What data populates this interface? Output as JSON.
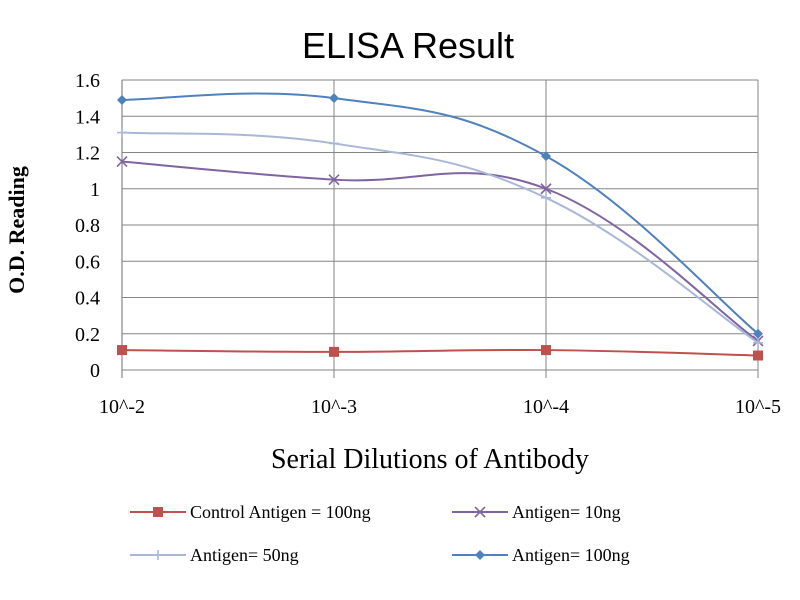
{
  "chart_data": {
    "type": "line",
    "title": "ELISA Result",
    "xlabel": "Serial Dilutions  of Antibody",
    "ylabel": "O.D. Reading",
    "categories": [
      "10^-2",
      "10^-3",
      "10^-4",
      "10^-5"
    ],
    "y_ticks": [
      "0",
      "0.2",
      "0.4",
      "0.6",
      "0.8",
      "1",
      "1.2",
      "1.4",
      "1.6"
    ],
    "ylim": [
      0,
      1.6
    ],
    "grid": true,
    "legend_position": "bottom",
    "series": [
      {
        "name": "Control Antigen = 100ng",
        "values": [
          0.11,
          0.1,
          0.11,
          0.08
        ],
        "color": "#c0504d",
        "marker": "square"
      },
      {
        "name": "Antigen= 10ng",
        "values": [
          1.15,
          1.05,
          1.0,
          0.16
        ],
        "color": "#8064a2",
        "marker": "x"
      },
      {
        "name": "Antigen= 50ng",
        "values": [
          1.31,
          1.25,
          0.95,
          0.15
        ],
        "color": "#a9b8d8",
        "marker": "plus"
      },
      {
        "name": "Antigen= 100ng",
        "values": [
          1.49,
          1.5,
          1.18,
          0.2
        ],
        "color": "#4f81bd",
        "marker": "diamond"
      }
    ]
  }
}
